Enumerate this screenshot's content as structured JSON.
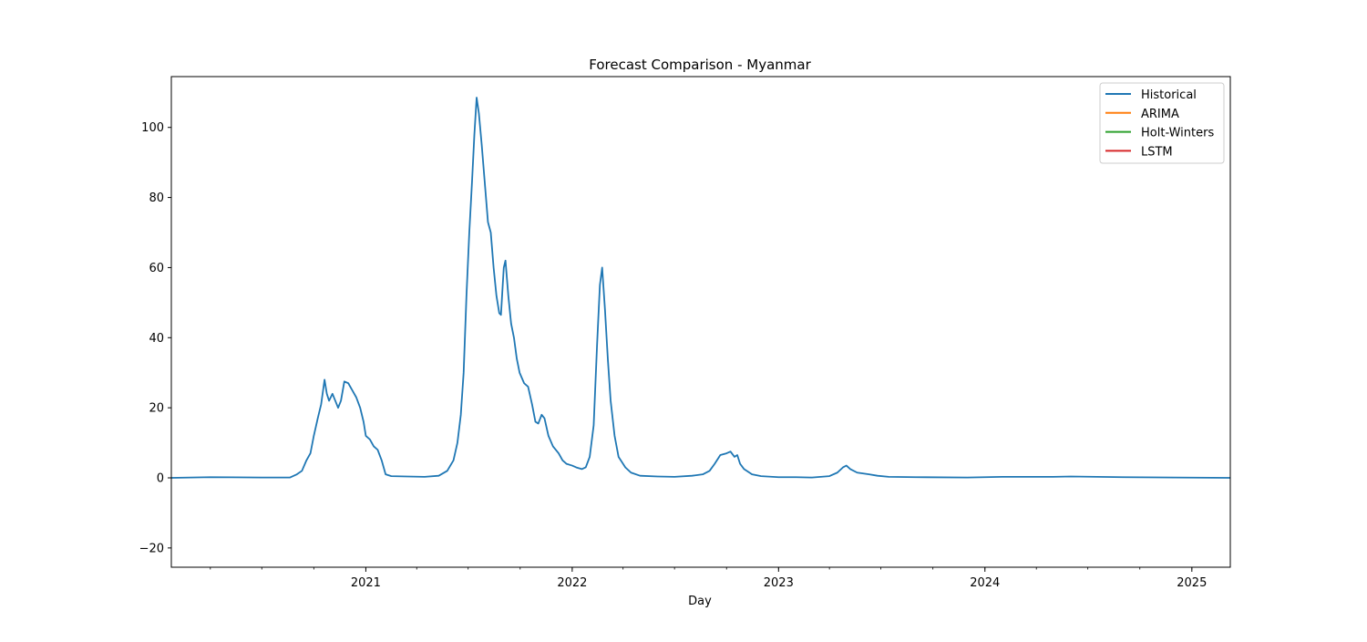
{
  "chart_data": {
    "type": "line",
    "title": "Forecast Comparison - Myanmar",
    "xlabel": "Day",
    "ylabel": "",
    "xlim": [
      "2020-01-23",
      "2025-03-10"
    ],
    "ylim": [
      -25.5,
      114.5
    ],
    "yticks": [
      -20,
      0,
      20,
      40,
      60,
      80,
      100
    ],
    "ytick_labels": [
      "−20",
      "0",
      "20",
      "40",
      "60",
      "80",
      "100"
    ],
    "xticks": [
      "2021-01-01",
      "2022-01-01",
      "2023-01-01",
      "2024-01-01",
      "2025-01-01"
    ],
    "xtick_labels": [
      "2021",
      "2022",
      "2023",
      "2024",
      "2025"
    ],
    "grid": false,
    "legend_position": "top-right",
    "series": [
      {
        "name": "Historical",
        "color": "#1f77b4",
        "points": [
          [
            "2020-01-23",
            0
          ],
          [
            "2020-04-01",
            0.2
          ],
          [
            "2020-07-01",
            0.1
          ],
          [
            "2020-08-20",
            0.1
          ],
          [
            "2020-09-01",
            1
          ],
          [
            "2020-09-10",
            2
          ],
          [
            "2020-09-18",
            5
          ],
          [
            "2020-09-25",
            7
          ],
          [
            "2020-10-01",
            12
          ],
          [
            "2020-10-08",
            17
          ],
          [
            "2020-10-14",
            21
          ],
          [
            "2020-10-20",
            28
          ],
          [
            "2020-10-24",
            24
          ],
          [
            "2020-10-28",
            22
          ],
          [
            "2020-11-03",
            24
          ],
          [
            "2020-11-08",
            22
          ],
          [
            "2020-11-13",
            20
          ],
          [
            "2020-11-18",
            22
          ],
          [
            "2020-11-24",
            27.5
          ],
          [
            "2020-12-01",
            27
          ],
          [
            "2020-12-08",
            25
          ],
          [
            "2020-12-15",
            23
          ],
          [
            "2020-12-22",
            20
          ],
          [
            "2020-12-28",
            16
          ],
          [
            "2021-01-01",
            12
          ],
          [
            "2021-01-08",
            11
          ],
          [
            "2021-01-15",
            9
          ],
          [
            "2021-01-22",
            8
          ],
          [
            "2021-01-29",
            5
          ],
          [
            "2021-02-05",
            1
          ],
          [
            "2021-02-15",
            0.5
          ],
          [
            "2021-03-15",
            0.4
          ],
          [
            "2021-04-15",
            0.3
          ],
          [
            "2021-05-10",
            0.6
          ],
          [
            "2021-05-25",
            2
          ],
          [
            "2021-06-05",
            5
          ],
          [
            "2021-06-12",
            10
          ],
          [
            "2021-06-18",
            18
          ],
          [
            "2021-06-23",
            30
          ],
          [
            "2021-06-28",
            52
          ],
          [
            "2021-07-03",
            70
          ],
          [
            "2021-07-08",
            85
          ],
          [
            "2021-07-12",
            98
          ],
          [
            "2021-07-16",
            108.5
          ],
          [
            "2021-07-20",
            104
          ],
          [
            "2021-07-25",
            95
          ],
          [
            "2021-07-30",
            85
          ],
          [
            "2021-08-05",
            73
          ],
          [
            "2021-08-10",
            70
          ],
          [
            "2021-08-15",
            60
          ],
          [
            "2021-08-20",
            52
          ],
          [
            "2021-08-25",
            47
          ],
          [
            "2021-08-28",
            46.5
          ],
          [
            "2021-09-02",
            60
          ],
          [
            "2021-09-05",
            62
          ],
          [
            "2021-09-10",
            52
          ],
          [
            "2021-09-15",
            44
          ],
          [
            "2021-09-20",
            40
          ],
          [
            "2021-09-25",
            34
          ],
          [
            "2021-09-30",
            30
          ],
          [
            "2021-10-08",
            27
          ],
          [
            "2021-10-15",
            26
          ],
          [
            "2021-10-22",
            21
          ],
          [
            "2021-10-28",
            16
          ],
          [
            "2021-11-02",
            15.5
          ],
          [
            "2021-11-08",
            18
          ],
          [
            "2021-11-13",
            17
          ],
          [
            "2021-11-20",
            12
          ],
          [
            "2021-11-28",
            9
          ],
          [
            "2021-12-08",
            7
          ],
          [
            "2021-12-15",
            5
          ],
          [
            "2021-12-22",
            4
          ],
          [
            "2022-01-01",
            3.5
          ],
          [
            "2022-01-08",
            3
          ],
          [
            "2022-01-18",
            2.5
          ],
          [
            "2022-01-25",
            3
          ],
          [
            "2022-02-01",
            6
          ],
          [
            "2022-02-08",
            15
          ],
          [
            "2022-02-14",
            38
          ],
          [
            "2022-02-19",
            55
          ],
          [
            "2022-02-23",
            60
          ],
          [
            "2022-02-28",
            48
          ],
          [
            "2022-03-05",
            34
          ],
          [
            "2022-03-10",
            22
          ],
          [
            "2022-03-17",
            12
          ],
          [
            "2022-03-24",
            6
          ],
          [
            "2022-04-05",
            3
          ],
          [
            "2022-04-15",
            1.5
          ],
          [
            "2022-05-01",
            0.6
          ],
          [
            "2022-06-01",
            0.4
          ],
          [
            "2022-07-01",
            0.3
          ],
          [
            "2022-08-01",
            0.6
          ],
          [
            "2022-08-20",
            1
          ],
          [
            "2022-09-01",
            2
          ],
          [
            "2022-09-10",
            4
          ],
          [
            "2022-09-20",
            6.5
          ],
          [
            "2022-10-01",
            7
          ],
          [
            "2022-10-08",
            7.5
          ],
          [
            "2022-10-15",
            6
          ],
          [
            "2022-10-20",
            6.5
          ],
          [
            "2022-10-25",
            4
          ],
          [
            "2022-11-01",
            2.5
          ],
          [
            "2022-11-15",
            1
          ],
          [
            "2022-12-01",
            0.5
          ],
          [
            "2023-01-01",
            0.2
          ],
          [
            "2023-02-01",
            0.2
          ],
          [
            "2023-03-01",
            0.1
          ],
          [
            "2023-04-01",
            0.5
          ],
          [
            "2023-04-15",
            1.5
          ],
          [
            "2023-04-25",
            3
          ],
          [
            "2023-05-01",
            3.5
          ],
          [
            "2023-05-08",
            2.5
          ],
          [
            "2023-05-20",
            1.5
          ],
          [
            "2023-06-10",
            1
          ],
          [
            "2023-06-25",
            0.6
          ],
          [
            "2023-07-15",
            0.3
          ],
          [
            "2023-09-01",
            0.2
          ],
          [
            "2023-12-01",
            0.1
          ],
          [
            "2024-02-01",
            0.3
          ],
          [
            "2024-05-01",
            0.3
          ],
          [
            "2024-06-01",
            0.4
          ],
          [
            "2024-09-01",
            0.2
          ],
          [
            "2024-12-01",
            0.1
          ],
          [
            "2025-03-10",
            0
          ]
        ]
      },
      {
        "name": "ARIMA",
        "color": "#ff7f0e",
        "points": []
      },
      {
        "name": "Holt-Winters",
        "color": "#2ca02c",
        "points": []
      },
      {
        "name": "LSTM",
        "color": "#d62728",
        "points": []
      }
    ]
  }
}
